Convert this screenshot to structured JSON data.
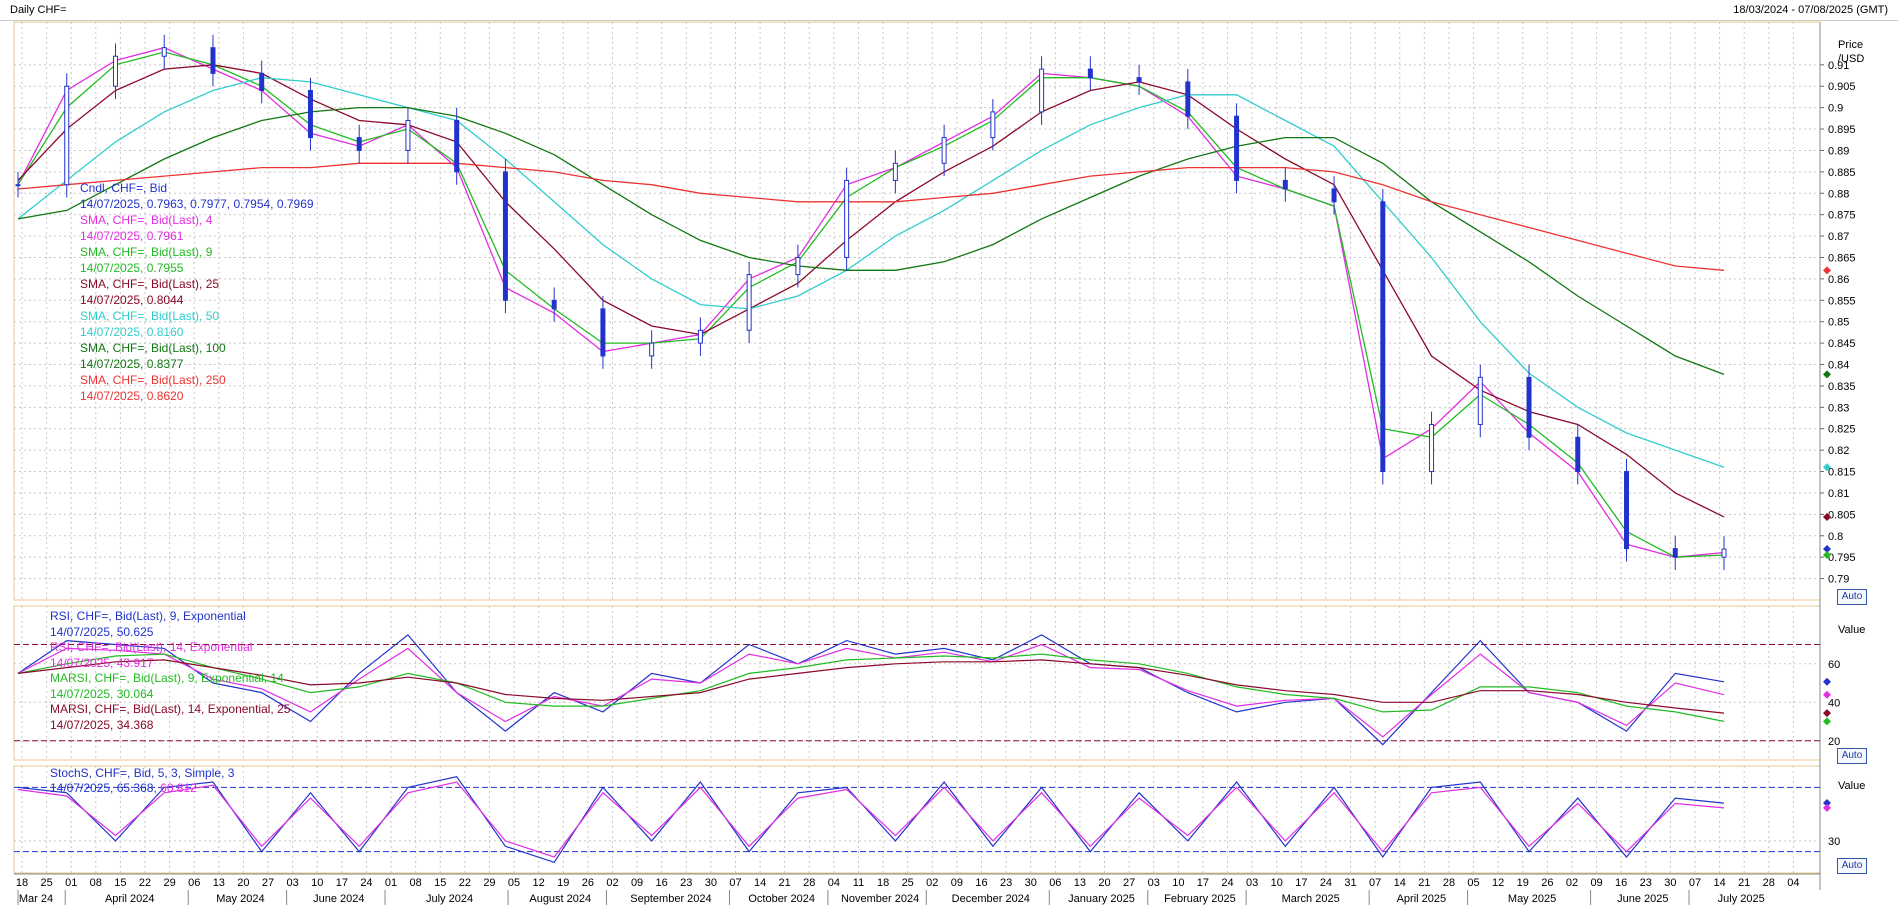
{
  "title_bar": {
    "title": "Daily CHF=",
    "date_range": "18/03/2024 - 07/08/2025 (GMT)"
  },
  "price_pane": {
    "axis_label_line1": "Price",
    "axis_label_line2": "/USD",
    "auto_label": "Auto",
    "legend": [
      {
        "label": "Cndl, CHF=, Bid",
        "value": "14/07/2025, 0.7963, 0.7977, 0.7954, 0.7969",
        "color": "#2233cc"
      },
      {
        "label": "SMA, CHF=, Bid(Last), 4",
        "value": "14/07/2025, 0.7961",
        "color": "#e22ee2"
      },
      {
        "label": "SMA, CHF=, Bid(Last), 9",
        "value": "14/07/2025, 0.7955",
        "color": "#22bb22"
      },
      {
        "label": "SMA, CHF=, Bid(Last), 25",
        "value": "14/07/2025, 0.8044",
        "color": "#8b0a2a"
      },
      {
        "label": "SMA, CHF=, Bid(Last), 50",
        "value": "14/07/2025, 0.8160",
        "color": "#33cccc"
      },
      {
        "label": "SMA, CHF=, Bid(Last), 100",
        "value": "14/07/2025, 0.8377",
        "color": "#117711"
      },
      {
        "label": "SMA, CHF=, Bid(Last), 250",
        "value": "14/07/2025, 0.8620",
        "color": "#ee3333"
      }
    ]
  },
  "rsi_pane": {
    "axis_label": "Value",
    "auto_label": "Auto",
    "legend": [
      {
        "label": "RSI, CHF=, Bid(Last), 9, Exponential",
        "value": "14/07/2025, 50.625",
        "color": "#2233cc"
      },
      {
        "label": "RSI, CHF=, Bid(Last), 14, Exponential",
        "value": "14/07/2025, 43.917",
        "color": "#e22ee2"
      },
      {
        "label": "MARSI, CHF=, Bid(Last), 9, Exponential, 14",
        "value": "14/07/2025, 30.064",
        "color": "#22bb22"
      },
      {
        "label": "MARSI, CHF=, Bid(Last), 14, Exponential, 25",
        "value": "14/07/2025, 34.368",
        "color": "#8b0a2a"
      }
    ]
  },
  "stoch_pane": {
    "axis_label": "Value",
    "auto_label": "Auto",
    "legend_label": "StochS, CHF=, Bid, 5, 3, Simple, 3",
    "legend_date": "14/07/2025,",
    "legend_v1": "65.368,",
    "legend_v2": "60.812",
    "color1": "#2233cc",
    "color2": "#e22ee2"
  },
  "chart_data": [
    {
      "type": "line",
      "title": "Daily CHF=",
      "ylabel": "Price /USD",
      "ylim": [
        0.785,
        0.92
      ],
      "y_ticks": [
        0.79,
        0.795,
        0.8,
        0.805,
        0.81,
        0.815,
        0.82,
        0.825,
        0.83,
        0.835,
        0.84,
        0.845,
        0.85,
        0.855,
        0.86,
        0.865,
        0.87,
        0.875,
        0.88,
        0.885,
        0.89,
        0.895,
        0.9,
        0.905,
        0.91
      ],
      "x_day_ticks": [
        "18",
        "25",
        "01",
        "08",
        "15",
        "22",
        "29",
        "06",
        "13",
        "20",
        "27",
        "03",
        "10",
        "17",
        "24",
        "01",
        "08",
        "15",
        "22",
        "29",
        "05",
        "12",
        "19",
        "26",
        "02",
        "09",
        "16",
        "23",
        "30",
        "07",
        "14",
        "21",
        "28",
        "04",
        "11",
        "18",
        "25",
        "02",
        "09",
        "16",
        "23",
        "30",
        "06",
        "13",
        "20",
        "27",
        "03",
        "10",
        "17",
        "24",
        "03",
        "10",
        "17",
        "24",
        "31",
        "07",
        "14",
        "21",
        "28",
        "05",
        "12",
        "19",
        "26",
        "02",
        "09",
        "16",
        "23",
        "30",
        "07",
        "14",
        "21",
        "28",
        "04"
      ],
      "x_month_labels": [
        "Mar 24",
        "April 2024",
        "May 2024",
        "June 2024",
        "July 2024",
        "August 2024",
        "September 2024",
        "October 2024",
        "November 2024",
        "December 2024",
        "January 2025",
        "February 2025",
        "March 2025",
        "April 2025",
        "May 2025",
        "June 2025",
        "July 2025"
      ],
      "candle_close_series": {
        "name": "Cndl, CHF=, Bid",
        "x": [
          "2024-03-18",
          "2024-04-01",
          "2024-04-15",
          "2024-04-29",
          "2024-05-13",
          "2024-05-27",
          "2024-06-10",
          "2024-06-24",
          "2024-07-08",
          "2024-07-22",
          "2024-08-05",
          "2024-08-19",
          "2024-09-02",
          "2024-09-16",
          "2024-09-30",
          "2024-10-14",
          "2024-10-28",
          "2024-11-11",
          "2024-11-25",
          "2024-12-09",
          "2024-12-23",
          "2025-01-06",
          "2025-01-20",
          "2025-02-03",
          "2025-02-17",
          "2025-03-03",
          "2025-03-17",
          "2025-03-31",
          "2025-04-14",
          "2025-04-28",
          "2025-05-12",
          "2025-05-26",
          "2025-06-09",
          "2025-06-23",
          "2025-07-07",
          "2025-07-14"
        ],
        "values": [
          0.882,
          0.905,
          0.912,
          0.914,
          0.908,
          0.904,
          0.893,
          0.89,
          0.897,
          0.885,
          0.855,
          0.853,
          0.842,
          0.845,
          0.848,
          0.861,
          0.865,
          0.883,
          0.887,
          0.893,
          0.899,
          0.909,
          0.907,
          0.906,
          0.898,
          0.883,
          0.881,
          0.878,
          0.815,
          0.826,
          0.837,
          0.823,
          0.815,
          0.797,
          0.795,
          0.7969
        ]
      },
      "series": [
        {
          "name": "SMA, CHF=, Bid(Last), 4",
          "values": [
            0.882,
            0.904,
            0.911,
            0.914,
            0.909,
            0.904,
            0.894,
            0.891,
            0.896,
            0.886,
            0.858,
            0.852,
            0.843,
            0.845,
            0.847,
            0.86,
            0.865,
            0.882,
            0.886,
            0.892,
            0.898,
            0.908,
            0.907,
            0.905,
            0.898,
            0.884,
            0.881,
            0.877,
            0.818,
            0.825,
            0.836,
            0.824,
            0.815,
            0.798,
            0.795,
            0.7961
          ]
        },
        {
          "name": "SMA, CHF=, Bid(Last), 9",
          "values": [
            0.882,
            0.9,
            0.91,
            0.913,
            0.91,
            0.905,
            0.896,
            0.892,
            0.895,
            0.887,
            0.862,
            0.853,
            0.845,
            0.845,
            0.846,
            0.858,
            0.864,
            0.879,
            0.886,
            0.891,
            0.897,
            0.907,
            0.907,
            0.905,
            0.899,
            0.886,
            0.881,
            0.877,
            0.825,
            0.823,
            0.833,
            0.826,
            0.817,
            0.801,
            0.795,
            0.7955
          ]
        },
        {
          "name": "SMA, CHF=, Bid(Last), 25",
          "values": [
            0.883,
            0.895,
            0.904,
            0.909,
            0.91,
            0.908,
            0.902,
            0.897,
            0.896,
            0.892,
            0.878,
            0.867,
            0.855,
            0.849,
            0.847,
            0.853,
            0.859,
            0.869,
            0.878,
            0.885,
            0.891,
            0.899,
            0.904,
            0.906,
            0.903,
            0.895,
            0.888,
            0.882,
            0.862,
            0.842,
            0.834,
            0.829,
            0.826,
            0.819,
            0.81,
            0.8044
          ]
        },
        {
          "name": "SMA, CHF=, Bid(Last), 50",
          "values": [
            0.874,
            0.883,
            0.892,
            0.899,
            0.904,
            0.907,
            0.906,
            0.903,
            0.9,
            0.897,
            0.888,
            0.878,
            0.868,
            0.86,
            0.854,
            0.853,
            0.856,
            0.862,
            0.87,
            0.876,
            0.883,
            0.89,
            0.896,
            0.9,
            0.903,
            0.903,
            0.897,
            0.891,
            0.878,
            0.865,
            0.85,
            0.838,
            0.83,
            0.824,
            0.82,
            0.816
          ]
        },
        {
          "name": "SMA, CHF=, Bid(Last), 100",
          "values": [
            0.874,
            0.876,
            0.882,
            0.888,
            0.893,
            0.897,
            0.899,
            0.9,
            0.9,
            0.898,
            0.894,
            0.889,
            0.882,
            0.875,
            0.869,
            0.865,
            0.863,
            0.862,
            0.862,
            0.864,
            0.868,
            0.874,
            0.879,
            0.884,
            0.888,
            0.891,
            0.893,
            0.893,
            0.887,
            0.878,
            0.871,
            0.864,
            0.856,
            0.849,
            0.842,
            0.8377
          ]
        },
        {
          "name": "SMA, CHF=, Bid(Last), 250",
          "values": [
            0.881,
            0.882,
            0.883,
            0.884,
            0.885,
            0.886,
            0.886,
            0.887,
            0.887,
            0.887,
            0.886,
            0.885,
            0.883,
            0.882,
            0.88,
            0.879,
            0.878,
            0.878,
            0.878,
            0.879,
            0.88,
            0.882,
            0.884,
            0.885,
            0.886,
            0.886,
            0.886,
            0.885,
            0.882,
            0.878,
            0.875,
            0.872,
            0.869,
            0.866,
            0.863,
            0.862
          ]
        }
      ]
    },
    {
      "type": "line",
      "title": "RSI",
      "ylabel": "Value",
      "ylim": [
        10,
        90
      ],
      "y_ticks": [
        20,
        40,
        60
      ],
      "reference_lines": [
        20,
        70
      ],
      "series": [
        {
          "name": "RSI, CHF=, Bid(Last), 9, Exponential",
          "values": [
            55,
            72,
            70,
            68,
            50,
            45,
            30,
            55,
            75,
            45,
            25,
            45,
            35,
            55,
            50,
            70,
            60,
            72,
            65,
            68,
            62,
            75,
            60,
            58,
            45,
            35,
            40,
            42,
            18,
            45,
            72,
            45,
            40,
            25,
            55,
            50.625
          ]
        },
        {
          "name": "RSI, CHF=, Bid(Last), 14, Exponential",
          "values": [
            55,
            68,
            67,
            65,
            52,
            47,
            35,
            52,
            68,
            45,
            30,
            43,
            38,
            52,
            50,
            65,
            60,
            68,
            63,
            66,
            61,
            70,
            58,
            57,
            46,
            38,
            41,
            42,
            22,
            44,
            65,
            45,
            40,
            28,
            50,
            43.917
          ]
        },
        {
          "name": "MARSI, CHF=, Bid(Last), 9, Exponential, 14",
          "values": [
            55,
            60,
            64,
            65,
            58,
            52,
            45,
            48,
            55,
            50,
            40,
            38,
            38,
            42,
            46,
            55,
            58,
            62,
            63,
            64,
            63,
            65,
            62,
            60,
            55,
            48,
            44,
            42,
            35,
            36,
            48,
            48,
            45,
            38,
            35,
            30.064
          ]
        },
        {
          "name": "MARSI, CHF=, Bid(Last), 14, Exponential, 25",
          "values": [
            55,
            58,
            61,
            62,
            58,
            54,
            49,
            50,
            53,
            50,
            44,
            42,
            41,
            43,
            45,
            52,
            55,
            58,
            60,
            61,
            61,
            62,
            60,
            58,
            54,
            49,
            46,
            44,
            40,
            40,
            46,
            46,
            44,
            40,
            37,
            34.368
          ]
        }
      ]
    },
    {
      "type": "line",
      "title": "StochS",
      "ylabel": "Value",
      "ylim": [
        0,
        100
      ],
      "y_ticks": [
        30
      ],
      "reference_lines": [
        20,
        80
      ],
      "series": [
        {
          "name": "StochS, CHF=, Bid, 5, 3, Simple, 3 (K)",
          "values": [
            80,
            75,
            30,
            80,
            85,
            20,
            75,
            20,
            80,
            90,
            25,
            10,
            80,
            30,
            85,
            20,
            75,
            80,
            30,
            85,
            25,
            80,
            20,
            75,
            30,
            85,
            25,
            80,
            15,
            80,
            85,
            20,
            70,
            15,
            70,
            65.368
          ]
        },
        {
          "name": "StochS, CHF=, Bid, 5, 3, Simple, 3 (D)",
          "values": [
            78,
            72,
            35,
            75,
            82,
            25,
            70,
            25,
            75,
            85,
            30,
            15,
            75,
            35,
            80,
            25,
            70,
            78,
            35,
            80,
            30,
            75,
            25,
            70,
            35,
            80,
            30,
            75,
            20,
            75,
            80,
            25,
            65,
            20,
            65,
            60.812
          ]
        }
      ]
    }
  ]
}
